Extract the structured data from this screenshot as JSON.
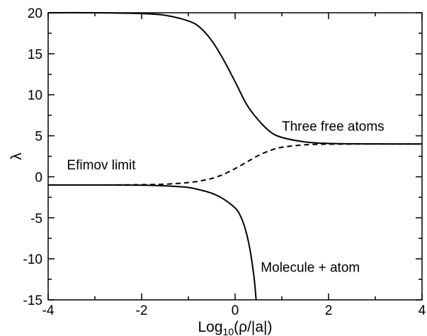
{
  "chart_data": {
    "type": "line",
    "xlabel_main": "Log",
    "xlabel_sub": "10",
    "xlabel_rest": "(ρ/|a|)",
    "ylabel": "λ",
    "xlim": [
      -4,
      4
    ],
    "ylim": [
      -15,
      20
    ],
    "x_ticks": [
      -4,
      -2,
      0,
      2,
      4
    ],
    "y_ticks": [
      20,
      15,
      10,
      5,
      0,
      -5,
      -10,
      -15
    ],
    "x_tick_labels": [
      "-4",
      "-2",
      "0",
      "2",
      "4"
    ],
    "y_tick_labels": [
      "20",
      "15",
      "10",
      "5",
      "0",
      "-5",
      "-10",
      "-15"
    ],
    "grid": false,
    "series": [
      {
        "style": "solid",
        "x": [
          -4,
          -3,
          -2,
          -1.5,
          -1,
          -0.75,
          -0.5,
          -0.25,
          0,
          0.25,
          0.5,
          0.75,
          1,
          1.5,
          2,
          3,
          4
        ],
        "y": [
          20,
          20,
          19.9,
          19.7,
          19.0,
          18.2,
          16.6,
          14.3,
          11.6,
          8.8,
          6.9,
          5.5,
          4.8,
          4.25,
          4.07,
          4.01,
          4
        ]
      },
      {
        "style": "dashed",
        "x": [
          -4,
          -3,
          -2,
          -1.5,
          -1,
          -0.75,
          -0.5,
          -0.25,
          0,
          0.25,
          0.5,
          0.75,
          1,
          1.5,
          2,
          3,
          4
        ],
        "y": [
          -1,
          -1,
          -0.96,
          -0.9,
          -0.7,
          -0.5,
          -0.2,
          0.3,
          1.0,
          1.8,
          2.6,
          3.2,
          3.6,
          3.9,
          3.98,
          4,
          4
        ]
      },
      {
        "style": "solid",
        "x": [
          -4,
          -3,
          -2,
          -1.5,
          -1,
          -0.75,
          -0.5,
          -0.25,
          0,
          0.1,
          0.2,
          0.3,
          0.4,
          0.45
        ],
        "y": [
          -1,
          -1,
          -1.02,
          -1.1,
          -1.3,
          -1.6,
          -2.0,
          -2.7,
          -3.8,
          -4.6,
          -6.0,
          -8.3,
          -12.0,
          -15
        ]
      }
    ],
    "annotations": [
      {
        "text": "Three free atoms",
        "x": 1.0,
        "y": 5.6
      },
      {
        "text": "Efimov limit",
        "x": -3.6,
        "y": 0.9
      },
      {
        "text": "Molecule + atom",
        "x": 0.55,
        "y": -11.6
      }
    ]
  }
}
